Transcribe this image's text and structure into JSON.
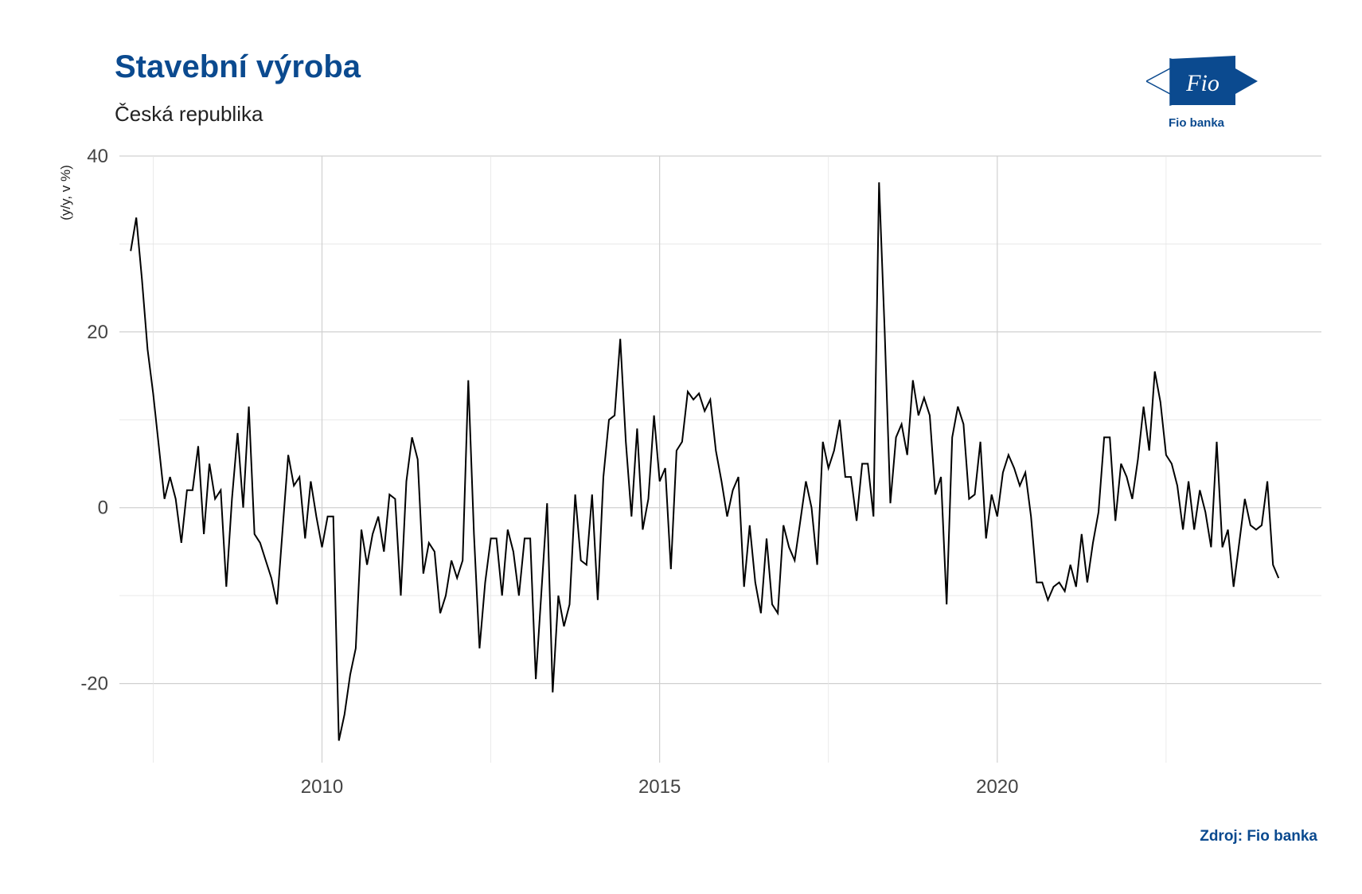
{
  "header": {
    "title": "Stavební výroba",
    "subtitle": "Česká republika",
    "logo_text": "Fio banka",
    "logo_mark": "Fio"
  },
  "footer": {
    "source": "Zdroj: Fio banka"
  },
  "colors": {
    "brand": "#0b4a8f",
    "line": "#000000",
    "grid": "#d9d9d9"
  },
  "chart_data": {
    "type": "line",
    "title": "Stavební výroba",
    "subtitle": "Česká republika",
    "xlabel": "",
    "ylabel": "(y/y, v %)",
    "xlim": [
      2007.0,
      2024.8
    ],
    "ylim": [
      -29,
      40
    ],
    "x_ticks": [
      2010,
      2015,
      2020
    ],
    "y_ticks": [
      -20,
      0,
      20,
      40
    ],
    "grid": true,
    "series": [
      {
        "start": 2007.167,
        "step": 0.08333,
        "values": [
          29.2,
          33,
          26,
          18,
          13,
          7,
          1,
          3.5,
          1,
          -4,
          2,
          2,
          7,
          -3,
          5,
          1,
          2,
          -9,
          1,
          8.5,
          0,
          11.5,
          -3,
          -4,
          -6,
          -8,
          -11,
          -2.5,
          6,
          2.5,
          3.5,
          -3.5,
          3,
          -1,
          -4.5,
          -1,
          -1,
          -26.5,
          -23.5,
          -19,
          -16,
          -2.5,
          -6.5,
          -3,
          -1,
          -5,
          1.5,
          1,
          -10,
          3,
          8,
          5.5,
          -7.5,
          -4,
          -5,
          -12,
          -10,
          -6,
          -8,
          -6,
          14.5,
          -3,
          -16,
          -8.5,
          -3.5,
          -3.5,
          -10,
          -2.5,
          -5,
          -10,
          -3.5,
          -3.5,
          -19.5,
          -9.5,
          0.5,
          -21,
          -10,
          -13.5,
          -11,
          1.5,
          -6,
          -6.5,
          1.5,
          -10.5,
          3.5,
          10,
          10.5,
          19.2,
          7.5,
          -1,
          9,
          -2.5,
          1,
          10.5,
          3,
          4.5,
          -7,
          6.5,
          7.5,
          13.2,
          12.3,
          13,
          11,
          12.3,
          6.5,
          3,
          -1,
          2,
          3.5,
          -9,
          -2,
          -8.5,
          -12,
          -3.5,
          -11,
          -12,
          -2,
          -4.5,
          -6,
          -1.5,
          3,
          0,
          -6.5,
          7.5,
          4.5,
          6.5,
          10,
          3.5,
          3.5,
          -1.5,
          5,
          5,
          -1,
          37,
          20,
          0.5,
          8,
          9.5,
          6,
          14.5,
          10.5,
          12.5,
          10.5,
          1.5,
          3.5,
          -11,
          8,
          11.5,
          9.5,
          1,
          1.5,
          7.5,
          -3.5,
          1.5,
          -1,
          4,
          6,
          4.5,
          2.5,
          4,
          -1,
          -8.5,
          -8.5,
          -10.5,
          -9,
          -8.5,
          -9.5,
          -6.5,
          -9,
          -3,
          -8.5,
          -4,
          -0.5,
          8,
          8,
          -1.5,
          5,
          3.5,
          1,
          5.5,
          11.5,
          6.5,
          15.5,
          12,
          6,
          5,
          2.5,
          -2.5,
          3,
          -2.5,
          2,
          -0.5,
          -4.5,
          7.5,
          -4.5,
          -2.5,
          -9,
          -4,
          1,
          -2,
          -2.5,
          -2,
          3,
          -6.5,
          -8
        ]
      }
    ]
  }
}
